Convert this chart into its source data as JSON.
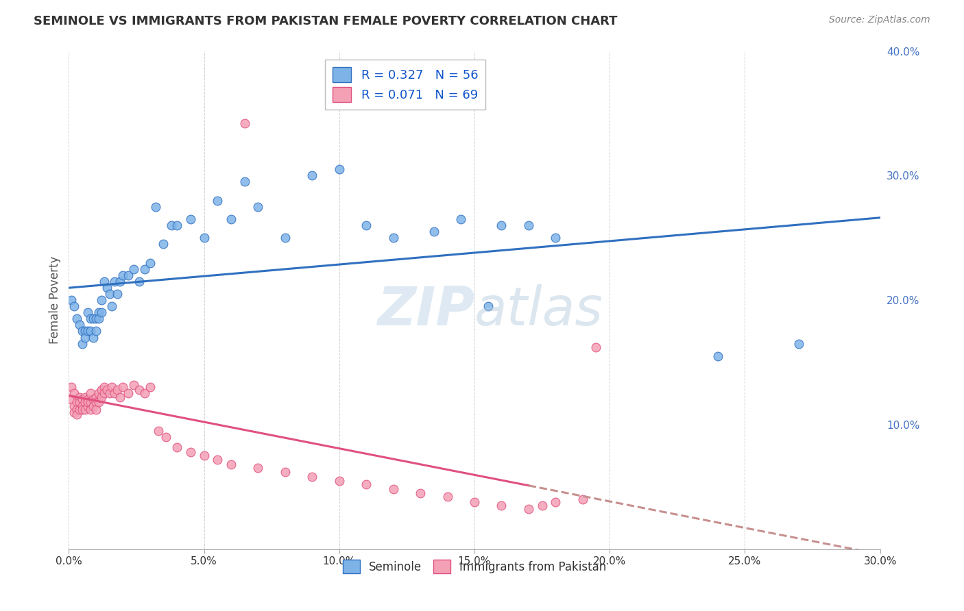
{
  "title": "SEMINOLE VS IMMIGRANTS FROM PAKISTAN FEMALE POVERTY CORRELATION CHART",
  "source": "Source: ZipAtlas.com",
  "ylabel": "Female Poverty",
  "xlim": [
    0.0,
    0.3
  ],
  "ylim": [
    0.0,
    0.4
  ],
  "legend_R1": "R = 0.327",
  "legend_N1": "N = 56",
  "legend_R2": "R = 0.071",
  "legend_N2": "N = 69",
  "color_blue": "#7EB3E8",
  "color_pink": "#F4A0B5",
  "line_blue": "#3070C0",
  "line_pink": "#E05080",
  "line_pink_dash": "#C89090",
  "label_seminole": "Seminole",
  "label_pakistan": "Immigrants from Pakistan",
  "seminole_x": [
    0.001,
    0.002,
    0.003,
    0.004,
    0.005,
    0.005,
    0.006,
    0.006,
    0.007,
    0.007,
    0.008,
    0.008,
    0.009,
    0.009,
    0.01,
    0.01,
    0.011,
    0.011,
    0.012,
    0.012,
    0.013,
    0.014,
    0.015,
    0.016,
    0.017,
    0.018,
    0.019,
    0.02,
    0.022,
    0.024,
    0.026,
    0.028,
    0.03,
    0.032,
    0.035,
    0.038,
    0.04,
    0.045,
    0.05,
    0.055,
    0.06,
    0.065,
    0.07,
    0.08,
    0.09,
    0.1,
    0.11,
    0.12,
    0.135,
    0.145,
    0.155,
    0.16,
    0.17,
    0.18,
    0.24,
    0.27
  ],
  "seminole_y": [
    0.2,
    0.195,
    0.185,
    0.18,
    0.175,
    0.165,
    0.175,
    0.17,
    0.175,
    0.19,
    0.185,
    0.175,
    0.17,
    0.185,
    0.185,
    0.175,
    0.19,
    0.185,
    0.2,
    0.19,
    0.215,
    0.21,
    0.205,
    0.195,
    0.215,
    0.205,
    0.215,
    0.22,
    0.22,
    0.225,
    0.215,
    0.225,
    0.23,
    0.275,
    0.245,
    0.26,
    0.26,
    0.265,
    0.25,
    0.28,
    0.265,
    0.295,
    0.275,
    0.25,
    0.3,
    0.305,
    0.26,
    0.25,
    0.255,
    0.265,
    0.195,
    0.26,
    0.26,
    0.25,
    0.155,
    0.165
  ],
  "pakistan_x": [
    0.001,
    0.001,
    0.002,
    0.002,
    0.002,
    0.003,
    0.003,
    0.003,
    0.004,
    0.004,
    0.004,
    0.005,
    0.005,
    0.005,
    0.006,
    0.006,
    0.006,
    0.007,
    0.007,
    0.007,
    0.008,
    0.008,
    0.008,
    0.009,
    0.009,
    0.01,
    0.01,
    0.01,
    0.011,
    0.011,
    0.012,
    0.012,
    0.013,
    0.013,
    0.014,
    0.015,
    0.016,
    0.017,
    0.018,
    0.019,
    0.02,
    0.022,
    0.024,
    0.026,
    0.028,
    0.03,
    0.033,
    0.036,
    0.04,
    0.045,
    0.05,
    0.055,
    0.06,
    0.065,
    0.07,
    0.08,
    0.09,
    0.1,
    0.11,
    0.12,
    0.13,
    0.14,
    0.15,
    0.16,
    0.17,
    0.175,
    0.18,
    0.19,
    0.195
  ],
  "pakistan_y": [
    0.13,
    0.12,
    0.125,
    0.115,
    0.11,
    0.118,
    0.112,
    0.108,
    0.122,
    0.118,
    0.112,
    0.12,
    0.115,
    0.112,
    0.122,
    0.118,
    0.112,
    0.12,
    0.115,
    0.118,
    0.125,
    0.118,
    0.112,
    0.12,
    0.115,
    0.122,
    0.118,
    0.112,
    0.125,
    0.118,
    0.128,
    0.122,
    0.13,
    0.125,
    0.128,
    0.125,
    0.13,
    0.125,
    0.128,
    0.122,
    0.13,
    0.125,
    0.132,
    0.128,
    0.125,
    0.13,
    0.095,
    0.09,
    0.082,
    0.078,
    0.075,
    0.072,
    0.068,
    0.342,
    0.065,
    0.062,
    0.058,
    0.055,
    0.052,
    0.048,
    0.045,
    0.042,
    0.038,
    0.035,
    0.032,
    0.035,
    0.038,
    0.04,
    0.162
  ]
}
